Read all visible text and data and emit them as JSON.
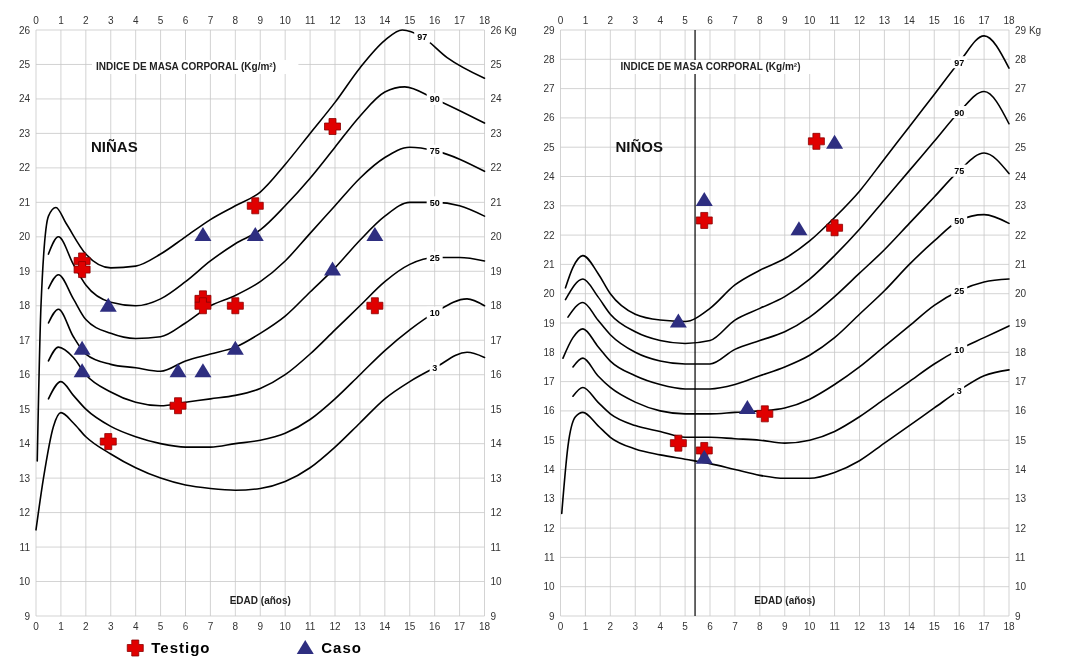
{
  "chart_data": [
    {
      "type": "line",
      "title": "NIÑAS",
      "ylabel": "INDICE DE MASA CORPORAL (Kg/m²)",
      "xlabel": "EDAD (años)",
      "xlim": [
        0,
        18
      ],
      "xticks": [
        0,
        1,
        2,
        3,
        4,
        5,
        6,
        7,
        8,
        9,
        10,
        11,
        12,
        13,
        14,
        15,
        16,
        17,
        18
      ],
      "x2lim": [
        0,
        18
      ],
      "x2ticks": [
        0,
        1,
        2,
        3,
        4,
        5,
        6,
        7,
        8,
        9,
        10,
        11,
        12,
        13,
        14,
        15,
        16,
        17,
        18
      ],
      "ylim": [
        9,
        26
      ],
      "yticks": [
        9,
        10,
        11,
        12,
        13,
        14,
        15,
        16,
        17,
        18,
        19,
        20,
        21,
        22,
        23,
        24,
        25,
        26
      ],
      "y2lim": [
        9,
        26
      ],
      "y2ticks": [
        9,
        10,
        11,
        12,
        13,
        14,
        15,
        16,
        17,
        18,
        19,
        20,
        21,
        22,
        23,
        24,
        25,
        {
          "value": 26,
          "label": "26 Kg"
        }
      ],
      "grid": true,
      "legend": "bottom",
      "marker": "none",
      "line_style": "solid",
      "series": [
        {
          "name": "97",
          "color": "#000000",
          "x": [
            0.05,
            0.2,
            0.5,
            0.8,
            1.2,
            2,
            3,
            4,
            5,
            6,
            7,
            8,
            9,
            10,
            11,
            12,
            13,
            14,
            14.7,
            15.5,
            16.5,
            18
          ],
          "values": [
            13.5,
            18,
            20.6,
            20.85,
            20.4,
            19.5,
            19.1,
            19.15,
            19.5,
            20,
            20.5,
            20.9,
            21.3,
            22.1,
            23,
            23.9,
            24.9,
            25.7,
            26,
            25.8,
            25.2,
            24.6
          ]
        },
        {
          "name": "90",
          "color": "#000000",
          "x": [
            0.5,
            0.9,
            1.5,
            2,
            3,
            4,
            5,
            6,
            7,
            8,
            9,
            10,
            11,
            12,
            13,
            14,
            14.8,
            16,
            18
          ],
          "values": [
            19.5,
            20,
            19.2,
            18.6,
            18.1,
            18,
            18.2,
            18.7,
            19.3,
            19.8,
            20.2,
            20.9,
            21.7,
            22.6,
            23.5,
            24.2,
            24.35,
            24,
            23.3
          ]
        },
        {
          "name": "75",
          "color": "#000000",
          "x": [
            0.5,
            0.9,
            1.5,
            2,
            3,
            4,
            5,
            6,
            7,
            8,
            9,
            10,
            11,
            12,
            13,
            14,
            15,
            16,
            18
          ],
          "values": [
            18.5,
            18.9,
            18.2,
            17.6,
            17.2,
            17.05,
            17.1,
            17.5,
            18,
            18.3,
            18.7,
            19.3,
            20.1,
            20.9,
            21.7,
            22.3,
            22.6,
            22.5,
            21.9
          ]
        },
        {
          "name": "50",
          "color": "#000000",
          "x": [
            0.5,
            0.9,
            1.5,
            2,
            3,
            4,
            5,
            6,
            7,
            8,
            9,
            10,
            11,
            12,
            13,
            14,
            15,
            16,
            17,
            18
          ],
          "values": [
            17.5,
            17.9,
            17.1,
            16.6,
            16.3,
            16.2,
            16.1,
            16.4,
            16.6,
            16.8,
            17.2,
            17.7,
            18.4,
            19.1,
            19.9,
            20.6,
            21,
            21,
            20.9,
            20.6
          ]
        },
        {
          "name": "25",
          "color": "#000000",
          "x": [
            0.5,
            0.9,
            1.5,
            2,
            3,
            4,
            5,
            6,
            7,
            8,
            9,
            10,
            11,
            12,
            13,
            14,
            15,
            16,
            17,
            18
          ],
          "values": [
            16.4,
            16.8,
            16.5,
            16,
            15.5,
            15.2,
            15.1,
            15.2,
            15.3,
            15.4,
            15.6,
            16,
            16.6,
            17.3,
            18,
            18.7,
            19.2,
            19.4,
            19.4,
            19.3
          ]
        },
        {
          "name": "10",
          "color": "#000000",
          "x": [
            0.5,
            1,
            1.5,
            2,
            3,
            4,
            5,
            6,
            7,
            8,
            9,
            10,
            11,
            12,
            13,
            14,
            15,
            16,
            17.3,
            18
          ],
          "values": [
            15.3,
            15.8,
            15.4,
            15,
            14.5,
            14.2,
            14,
            13.9,
            13.9,
            14,
            14.1,
            14.3,
            14.7,
            15.3,
            16,
            16.7,
            17.3,
            17.8,
            18.2,
            18
          ]
        },
        {
          "name": "3",
          "color": "#000000",
          "x": [
            0,
            0.3,
            0.7,
            1,
            1.5,
            2,
            3,
            4,
            5,
            6,
            7,
            8,
            9,
            10,
            11,
            12,
            13,
            14,
            15,
            16,
            17.3,
            18
          ],
          "values": [
            11.5,
            13,
            14.5,
            14.9,
            14.6,
            14.2,
            13.7,
            13.3,
            13,
            12.8,
            12.7,
            12.65,
            12.7,
            12.9,
            13.3,
            13.9,
            14.6,
            15.3,
            15.8,
            16.2,
            16.65,
            16.5
          ]
        },
        {
          "type": "scatter",
          "name": "Testigo",
          "color": "#e00000",
          "marker": "cross",
          "x": [
            1.85,
            1.85,
            11.9,
            8.8,
            6.7,
            6.7,
            8,
            13.6,
            5.7,
            2.9
          ],
          "values": [
            19.3,
            19.05,
            23.2,
            20.9,
            18.2,
            18,
            18,
            18,
            15.1,
            14.06
          ]
        },
        {
          "type": "scatter",
          "name": "Caso",
          "color": "#2e2e80",
          "marker": "triangle",
          "x": [
            6.7,
            8.8,
            13.6,
            11.9,
            2.9,
            1.85,
            1.85,
            5.7,
            6.7,
            8
          ],
          "values": [
            20.05,
            20.05,
            20.05,
            19.05,
            18,
            16.75,
            16.1,
            16.1,
            16.1,
            16.75
          ]
        }
      ]
    },
    {
      "type": "line",
      "title": "NIÑOS",
      "ylabel": "INDICE DE MASA CORPORAL (Kg/m²)",
      "xlabel": "EDAD (años)",
      "xlim": [
        0,
        18
      ],
      "xticks": [
        0,
        1,
        2,
        3,
        4,
        5,
        6,
        7,
        8,
        9,
        10,
        11,
        12,
        13,
        14,
        15,
        16,
        17,
        18
      ],
      "x2lim": [
        0,
        18
      ],
      "x2ticks": [
        0,
        1,
        2,
        3,
        4,
        5,
        6,
        7,
        8,
        9,
        10,
        11,
        12,
        13,
        14,
        15,
        16,
        17,
        18
      ],
      "ylim": [
        9,
        29
      ],
      "yticks": [
        9,
        10,
        11,
        12,
        13,
        14,
        15,
        16,
        17,
        18,
        19,
        20,
        21,
        22,
        23,
        24,
        25,
        26,
        27,
        28,
        29
      ],
      "y2lim": [
        9,
        29
      ],
      "y2ticks": [
        9,
        10,
        11,
        12,
        13,
        14,
        15,
        16,
        17,
        18,
        19,
        20,
        21,
        22,
        23,
        24,
        25,
        26,
        27,
        28,
        {
          "value": 29,
          "label": "29 Kg"
        }
      ],
      "grid": true,
      "marker": "none",
      "line_style": "solid",
      "ref_lines": [
        {
          "axis": "x",
          "value": 5.4,
          "color": "#000000"
        }
      ],
      "series": [
        {
          "name": "97",
          "color": "#000000",
          "x": [
            0.2,
            0.5,
            0.9,
            1.5,
            2,
            3,
            4,
            5,
            6,
            7,
            8,
            9,
            10,
            11,
            12,
            13,
            14,
            15,
            16,
            17,
            18
          ],
          "values": [
            20.2,
            20.9,
            21.3,
            20.7,
            20,
            19.3,
            19.1,
            19.05,
            19.5,
            20.3,
            20.8,
            21.2,
            21.8,
            22.6,
            23.5,
            24.6,
            25.7,
            26.8,
            27.9,
            28.8,
            27.7
          ]
        },
        {
          "name": "90",
          "color": "#000000",
          "x": [
            0.2,
            0.9,
            1.5,
            2,
            3,
            4,
            5,
            6,
            7,
            8,
            9,
            10,
            11,
            12,
            13,
            14,
            15,
            16,
            17,
            18
          ],
          "values": [
            19.8,
            20.5,
            19.9,
            19.3,
            18.7,
            18.4,
            18.3,
            18.4,
            19.1,
            19.5,
            19.9,
            20.5,
            21.3,
            22.2,
            23.2,
            24.2,
            25.2,
            26.2,
            26.9,
            25.8
          ]
        },
        {
          "name": "75",
          "color": "#000000",
          "x": [
            0.3,
            0.9,
            1.5,
            2,
            3,
            4,
            5,
            6,
            7,
            8,
            9,
            10,
            11,
            12,
            13,
            14,
            15,
            16,
            17,
            18
          ],
          "values": [
            19.2,
            19.7,
            19.1,
            18.6,
            18,
            17.7,
            17.6,
            17.6,
            18.1,
            18.4,
            18.7,
            19.2,
            19.9,
            20.7,
            21.5,
            22.4,
            23.3,
            24.2,
            24.8,
            24.1
          ]
        },
        {
          "name": "50",
          "color": "#000000",
          "x": [
            0.1,
            0.5,
            0.9,
            1.5,
            2,
            3,
            4,
            5,
            6,
            7,
            8,
            9,
            10,
            11,
            12,
            13,
            14,
            15,
            16,
            17,
            18
          ],
          "values": [
            17.8,
            18.5,
            18.8,
            18.2,
            17.7,
            17.2,
            16.9,
            16.75,
            16.75,
            16.9,
            17.2,
            17.5,
            17.9,
            18.5,
            19.3,
            20.1,
            21,
            21.8,
            22.5,
            22.7,
            22.4
          ]
        },
        {
          "name": "25",
          "color": "#000000",
          "x": [
            0.5,
            0.9,
            1.5,
            2,
            3,
            4,
            5,
            6,
            7,
            8,
            9,
            10,
            11,
            12,
            13,
            14,
            15,
            16,
            17,
            18
          ],
          "values": [
            17.5,
            17.8,
            17.2,
            16.8,
            16.3,
            16,
            15.9,
            15.9,
            15.95,
            16,
            16.1,
            16.4,
            16.9,
            17.5,
            18.2,
            18.9,
            19.6,
            20.1,
            20.4,
            20.5
          ]
        },
        {
          "name": "10",
          "color": "#000000",
          "x": [
            0.5,
            0.9,
            1.5,
            2,
            3,
            4,
            5,
            6,
            7,
            8,
            9,
            10,
            11,
            12,
            13,
            14,
            15,
            16,
            17,
            18
          ],
          "values": [
            16.5,
            16.8,
            16.3,
            15.9,
            15.5,
            15.3,
            15.1,
            15.1,
            15.05,
            15,
            14.9,
            15,
            15.3,
            15.8,
            16.4,
            17,
            17.6,
            18.1,
            18.5,
            18.9
          ]
        },
        {
          "name": "3",
          "color": "#000000",
          "x": [
            0.05,
            0.3,
            0.6,
            0.9,
            1.5,
            2,
            3,
            4,
            5,
            6,
            7,
            8,
            9,
            10,
            11,
            12,
            13,
            14,
            15,
            16,
            17,
            18
          ],
          "values": [
            12.5,
            14.8,
            15.8,
            15.95,
            15.5,
            15.1,
            14.7,
            14.5,
            14.35,
            14.2,
            14,
            13.8,
            13.7,
            13.7,
            13.9,
            14.3,
            14.9,
            15.5,
            16.1,
            16.7,
            17.2,
            17.4
          ]
        },
        {
          "type": "scatter",
          "color": "#e00000",
          "marker": "cross",
          "x": [
            10.27,
            5.77,
            11,
            4.73,
            5.77,
            8.2
          ],
          "values": [
            25.2,
            22.5,
            22.25,
            14.9,
            14.65,
            15.9
          ]
        },
        {
          "type": "scatter",
          "color": "#2e2e80",
          "marker": "triangle",
          "x": [
            11,
            5.77,
            9.57,
            4.73,
            7.5,
            5.77
          ],
          "values": [
            25.15,
            23.2,
            22.2,
            19.05,
            16.1,
            14.4
          ]
        }
      ]
    }
  ]
}
